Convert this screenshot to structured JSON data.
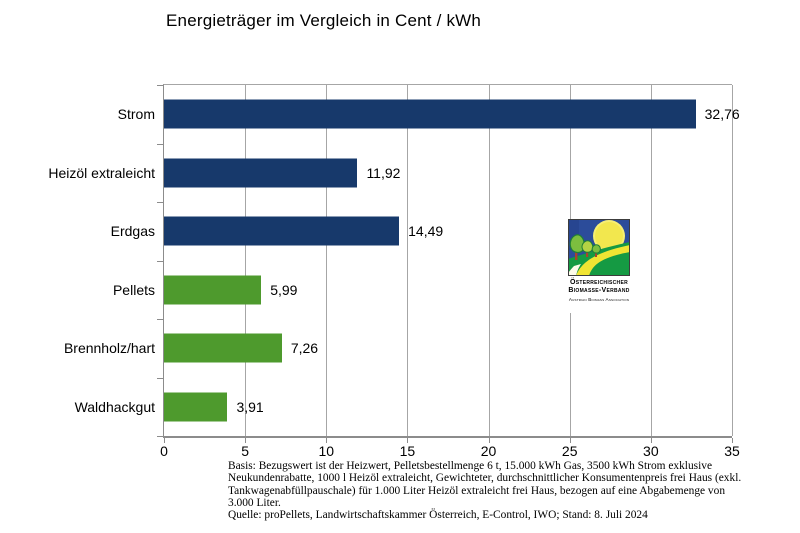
{
  "title": "Energieträger im Vergleich in Cent / kWh",
  "chart_data": {
    "type": "bar",
    "orientation": "horizontal",
    "title": "Energieträger im Vergleich in Cent / kWh",
    "categories": [
      "Strom",
      "Heizöl extraleicht",
      "Erdgas",
      "Pellets",
      "Brennholz/hart",
      "Waldhackgut"
    ],
    "values": [
      32.76,
      11.92,
      14.49,
      5.99,
      7.26,
      3.91
    ],
    "value_labels": [
      "32,76",
      "11,92",
      "14,49",
      "5,99",
      "7,26",
      "3,91"
    ],
    "bar_colors": [
      "#17396B",
      "#17396B",
      "#17396B",
      "#4E9A2D",
      "#4E9A2D",
      "#4E9A2D"
    ],
    "xlim": [
      0,
      35
    ],
    "x_ticks": [
      "0",
      "5",
      "10",
      "15",
      "20",
      "25",
      "30",
      "35"
    ],
    "grid": "vertical-major",
    "legend": "none"
  },
  "colors": {
    "bar_blue": "#17396B",
    "bar_green": "#4E9A2D",
    "gridline_gray": "#A6A6A6",
    "axis_gray": "#8C8C8C",
    "logo_text_green": "#2EA06C"
  },
  "logo": {
    "org_line1": "Österreichischer",
    "org_line2": "Biomasse-Verband",
    "subtitle": "Austrian Biomass Association"
  },
  "footer": {
    "basis_lines": [
      "Basis: Bezugswert ist der Heizwert, Pelletsbestellmenge 6 t, 15.000 kWh Gas, 3500 kWh Strom exklusive",
      "Neukundenrabatte, 1000 l Heizöl extraleicht, Gewichteter, durchschnittlicher Konsumentenpreis frei Haus (exkl.",
      "Tankwagenabfüllpauschale) für 1.000 Liter Heizöl extraleicht frei Haus, bezogen auf eine Abgabemenge von",
      "3.000 Liter."
    ],
    "quelle": "Quelle: proPellets, Landwirtschaftskammer Österreich, E-Control, IWO; Stand: 8. Juli 2024"
  }
}
